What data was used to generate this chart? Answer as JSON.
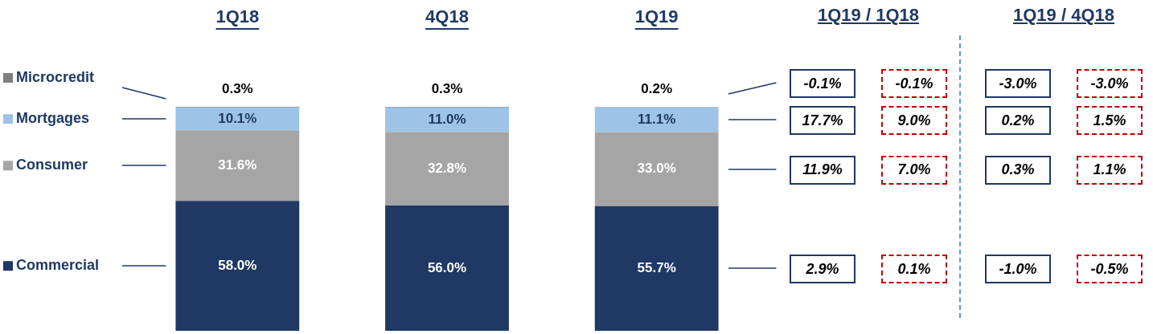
{
  "chart_data": [
    {
      "type": "bar",
      "stacked": true,
      "legend": "left",
      "categories": [
        "1Q18",
        "4Q18",
        "1Q19"
      ],
      "series": [
        {
          "name": "Commercial",
          "color": "#1f3864",
          "values": [
            58.0,
            56.0,
            55.7
          ],
          "value_labels": [
            "58.0%",
            "56.0%",
            "55.7%"
          ]
        },
        {
          "name": "Consumer",
          "color": "#a5a5a5",
          "values": [
            31.6,
            32.8,
            33.0
          ],
          "value_labels": [
            "31.6%",
            "32.8%",
            "33.0%"
          ]
        },
        {
          "name": "Mortgages",
          "color": "#9dc3e6",
          "values": [
            10.1,
            11.0,
            11.1
          ],
          "value_labels": [
            "10.1%",
            "11.0%",
            "11.1%"
          ]
        },
        {
          "name": "Microcredit",
          "color": "#7f7f7f",
          "values": [
            0.3,
            0.3,
            0.2
          ],
          "value_labels": [
            "0.3%",
            "0.3%",
            "0.2%"
          ]
        }
      ]
    },
    {
      "type": "other",
      "title": "1Q19 / 1Q18",
      "annotations": [
        "-0.1%",
        "-0.1%",
        "17.7%",
        "9.0%",
        "11.9%",
        "7.0%",
        "2.9%",
        "0.1%"
      ]
    },
    {
      "type": "other",
      "title": "1Q19 / 4Q18",
      "annotations": [
        "-3.0%",
        "-3.0%",
        "0.2%",
        "1.5%",
        "0.3%",
        "1.1%",
        "-1.0%",
        "-0.5%"
      ]
    }
  ]
}
